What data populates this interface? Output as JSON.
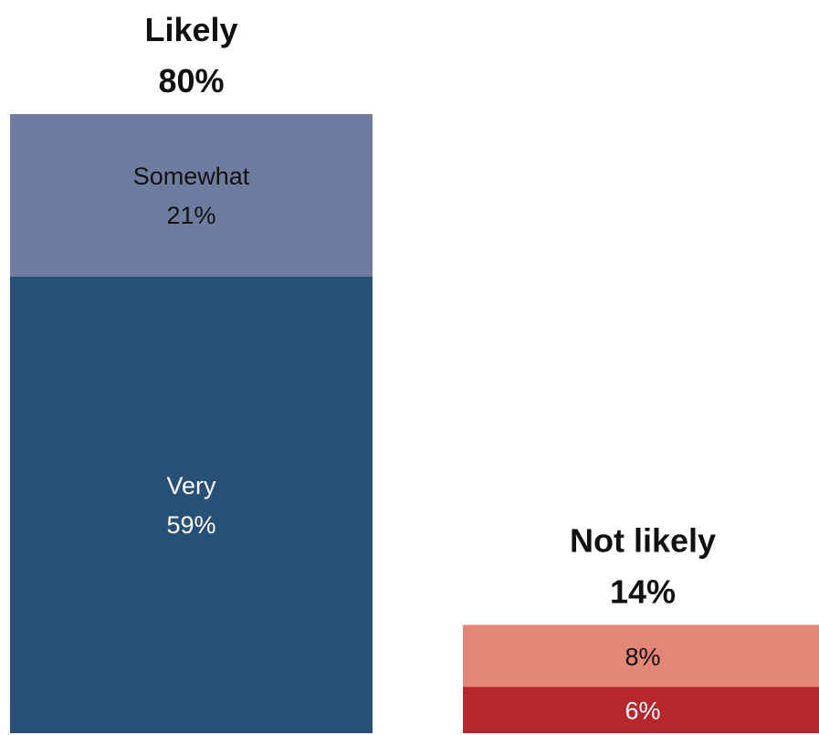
{
  "chart_data": {
    "type": "bar",
    "stacked": true,
    "ylim": [
      0,
      80
    ],
    "grid": false,
    "legend": "none",
    "categories": [
      "Likely",
      "Not likely"
    ],
    "bars": [
      {
        "category": "Likely",
        "total_label": "Likely",
        "total_value": "80%",
        "segments": [
          {
            "label": "Very",
            "value": 59,
            "value_label": "59%",
            "color": "#284f75",
            "text_color": "#ffffff"
          },
          {
            "label": "Somewhat",
            "value": 21,
            "value_label": "21%",
            "color": "#6e7d9f",
            "text_color": "#111111"
          }
        ]
      },
      {
        "category": "Not likely",
        "total_label": "Not likely",
        "total_value": "14%",
        "segments": [
          {
            "label": "",
            "value": 6,
            "value_label": "6%",
            "color": "#b5272a",
            "text_color": "#ffffff"
          },
          {
            "label": "",
            "value": 8,
            "value_label": "8%",
            "color": "#e38677",
            "text_color": "#111111"
          }
        ]
      }
    ]
  }
}
